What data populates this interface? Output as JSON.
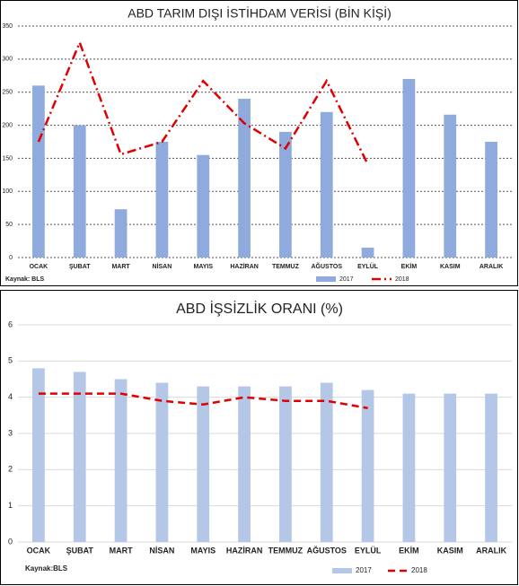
{
  "chart_data": [
    {
      "type": "bar_line",
      "title": "ABD TARIM DIŞI İSTİHDAM VERİSİ (BİN KİŞİ)",
      "source": "Kaynak: BLS",
      "categories": [
        "OCAK",
        "ŞUBAT",
        "MART",
        "NİSAN",
        "MAYIS",
        "HAZİRAN",
        "TEMMUZ",
        "AĞUSTOS",
        "EYLÜL",
        "EKİM",
        "KASIM",
        "ARALIK"
      ],
      "series": [
        {
          "name": "2017",
          "kind": "bar",
          "color": "#8faadc",
          "values": [
            260,
            200,
            73,
            175,
            155,
            240,
            190,
            220,
            15,
            270,
            216,
            175
          ]
        },
        {
          "name": "2018",
          "kind": "line",
          "color": "#e00000",
          "values": [
            175,
            325,
            156,
            175,
            267,
            203,
            165,
            267,
            141,
            null,
            null,
            null
          ]
        }
      ],
      "ylim": [
        0,
        350
      ],
      "yticks": [
        0,
        50,
        100,
        150,
        200,
        250,
        300,
        350
      ],
      "grid": true
    },
    {
      "type": "bar_line",
      "title": "ABD İŞSİZLİK ORANI (%)",
      "source": "Kaynak:BLS",
      "categories": [
        "OCAK",
        "ŞUBAT",
        "MART",
        "NİSAN",
        "MAYIS",
        "HAZİRAN",
        "TEMMUZ",
        "AĞUSTOS",
        "EYLÜL",
        "EKİM",
        "KASIM",
        "ARALIK"
      ],
      "series": [
        {
          "name": "2017",
          "kind": "bar",
          "color": "#b4c7e7",
          "values": [
            4.8,
            4.7,
            4.5,
            4.4,
            4.3,
            4.3,
            4.3,
            4.4,
            4.2,
            4.1,
            4.1,
            4.1
          ]
        },
        {
          "name": "2018",
          "kind": "line",
          "color": "#e00000",
          "values": [
            4.1,
            4.1,
            4.1,
            3.9,
            3.8,
            4.0,
            3.9,
            3.9,
            3.7,
            null,
            null,
            null
          ]
        }
      ],
      "ylim": [
        0,
        6
      ],
      "yticks": [
        0,
        1,
        2,
        3,
        4,
        5,
        6
      ],
      "grid": true
    }
  ]
}
